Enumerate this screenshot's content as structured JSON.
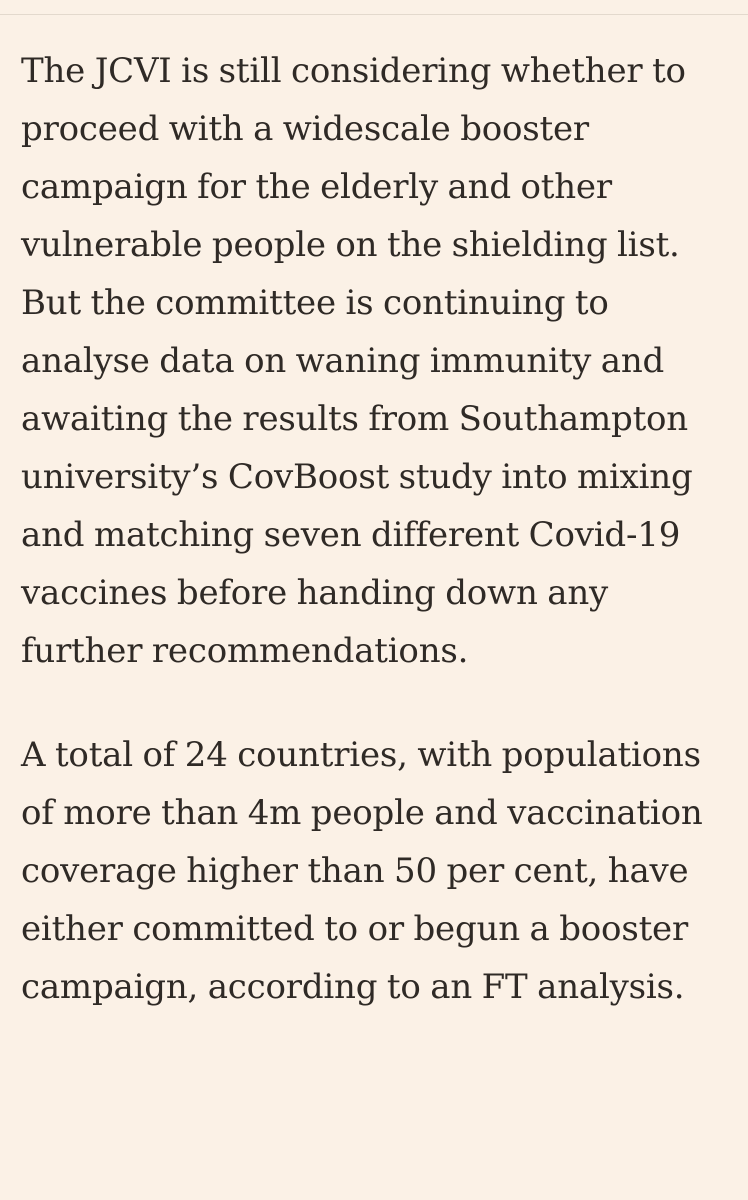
{
  "article": {
    "paragraphs": [
      "The JCVI is still considering whether to proceed with a widescale booster campaign for the elderly and other vulnerable people on the shielding list. But the committee is continuing to analyse data on waning immunity and awaiting the results from Southampton university’s CovBoost study into mixing and matching seven different Covid-19 vaccines before handing down any further recommendations.",
      "A total of 24 countries, with populations of more than 4m people and vaccination coverage higher than 50 per cent, have either committed to or begun a booster campaign, according to an FT analysis."
    ]
  }
}
